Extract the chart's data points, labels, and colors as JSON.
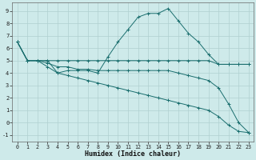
{
  "xlabel": "Humidex (Indice chaleur)",
  "xlim": [
    -0.5,
    23.5
  ],
  "ylim": [
    -1.5,
    9.7
  ],
  "yticks": [
    -1,
    0,
    1,
    2,
    3,
    4,
    5,
    6,
    7,
    8,
    9
  ],
  "xticks": [
    0,
    1,
    2,
    3,
    4,
    5,
    6,
    7,
    8,
    9,
    10,
    11,
    12,
    13,
    14,
    15,
    16,
    17,
    18,
    19,
    20,
    21,
    22,
    23
  ],
  "bg_color": "#ceeaea",
  "grid_color": "#b0d0d0",
  "line_color": "#1a6e6e",
  "lines": [
    {
      "x": [
        0,
        1,
        2,
        3,
        4,
        5,
        6,
        7,
        8,
        9,
        10,
        11,
        12,
        13,
        14,
        15,
        16,
        17,
        18,
        19,
        20,
        21,
        22,
        23
      ],
      "y": [
        6.5,
        5.0,
        5.0,
        5.0,
        4.0,
        4.2,
        4.2,
        4.2,
        4.0,
        5.3,
        6.5,
        7.5,
        8.5,
        8.8,
        8.8,
        9.2,
        8.2,
        7.2,
        6.5,
        5.5,
        4.7,
        4.7,
        4.7,
        4.7
      ]
    },
    {
      "x": [
        0,
        1,
        2,
        3,
        4,
        5,
        6,
        7,
        8,
        9,
        10,
        11,
        12,
        13,
        14,
        15,
        16,
        17,
        18,
        19,
        20,
        21,
        22,
        23
      ],
      "y": [
        6.5,
        5.0,
        5.0,
        5.0,
        5.0,
        5.0,
        5.0,
        5.0,
        5.0,
        5.0,
        5.0,
        5.0,
        5.0,
        5.0,
        5.0,
        5.0,
        5.0,
        5.0,
        5.0,
        5.0,
        4.7,
        4.7,
        4.7,
        4.7
      ]
    },
    {
      "x": [
        0,
        1,
        2,
        3,
        4,
        5,
        6,
        7,
        8,
        9,
        10,
        11,
        12,
        13,
        14,
        15,
        16,
        17,
        18,
        19,
        20,
        21,
        22,
        23
      ],
      "y": [
        6.5,
        5.0,
        5.0,
        4.8,
        4.5,
        4.5,
        4.3,
        4.3,
        4.2,
        4.2,
        4.2,
        4.2,
        4.2,
        4.2,
        4.2,
        4.2,
        4.0,
        3.8,
        3.6,
        3.4,
        2.8,
        1.5,
        0.0,
        -0.8
      ]
    },
    {
      "x": [
        0,
        1,
        2,
        3,
        4,
        5,
        6,
        7,
        8,
        9,
        10,
        11,
        12,
        13,
        14,
        15,
        16,
        17,
        18,
        19,
        20,
        21,
        22,
        23
      ],
      "y": [
        6.5,
        5.0,
        5.0,
        4.5,
        4.0,
        3.8,
        3.6,
        3.4,
        3.2,
        3.0,
        2.8,
        2.6,
        2.4,
        2.2,
        2.0,
        1.8,
        1.6,
        1.4,
        1.2,
        1.0,
        0.5,
        -0.2,
        -0.7,
        -0.8
      ]
    }
  ]
}
